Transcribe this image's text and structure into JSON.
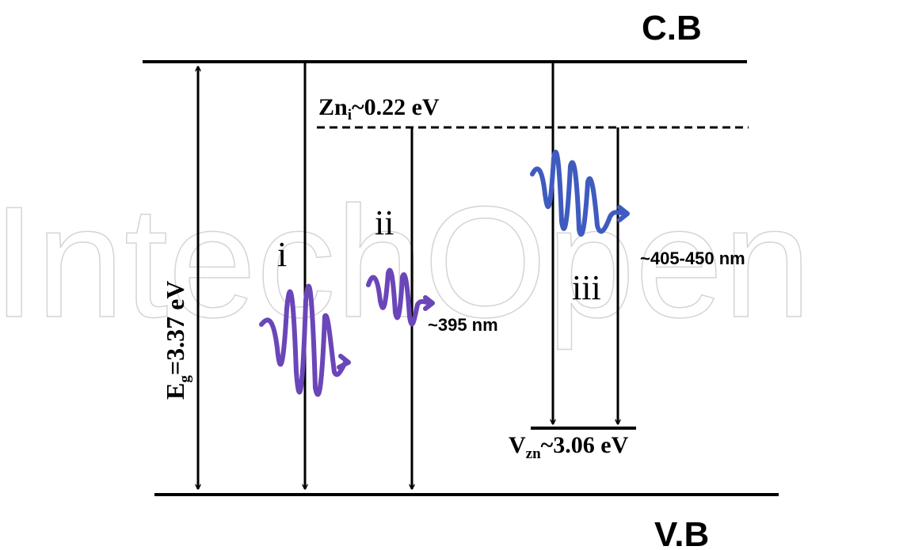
{
  "watermark": "IntechOpen",
  "bands": {
    "conduction": "C.B",
    "valence": "V.B"
  },
  "band_gap": {
    "symbol": "E",
    "subscript": "g",
    "value": "=3.37 eV"
  },
  "defect_levels": {
    "zn_interstitial": {
      "symbol": "Zn",
      "subscript": "i",
      "value": "~0.22 eV"
    },
    "zn_vacancy": {
      "symbol": "V",
      "subscript": "zn",
      "value": "~3.06 eV"
    }
  },
  "transitions": [
    {
      "label": "i",
      "wavelength": ""
    },
    {
      "label": "ii",
      "wavelength": "~395 nm"
    },
    {
      "label": "iii",
      "wavelength": "~405-450 nm"
    }
  ],
  "colors": {
    "line": "#000000",
    "photon_1": "#6b46b8",
    "photon_2": "#6b46b8",
    "photon_3": "#3f5bbf",
    "watermark": "#d4d4d4"
  }
}
